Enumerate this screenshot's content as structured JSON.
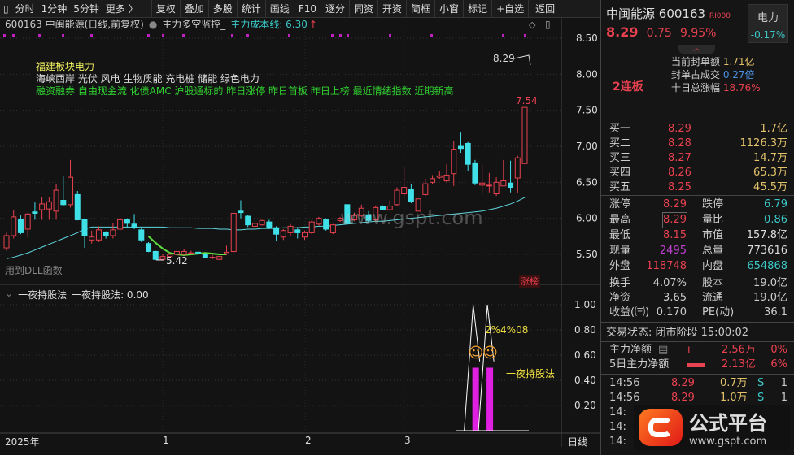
{
  "toolbar": {
    "left": [
      "分时",
      "1分钟",
      "5分钟",
      "更多 〉"
    ],
    "buttons": [
      "复权",
      "叠加",
      "多股",
      "统计",
      "画线",
      "F10",
      "逐分",
      "同资",
      "开资",
      "简框",
      "小窗",
      "标记",
      "+自选",
      "返回"
    ]
  },
  "subheader": {
    "title": "600163 中闽能源(日线,前复权)",
    "indicator": "主力多空监控_",
    "cost_label": "主力成本线: 6.30",
    "arrow": "↑"
  },
  "annot": {
    "sector": "福建板块电力",
    "concepts": "海峡西岸 光伏 风电 生物质能 充电桩 储能 绿色电力",
    "tags": "融资融券 自由现金流 化债AMC 沪股通标的 昨日涨停 昨日首板 昨日上榜 最近情绪指数 近期新高",
    "dll": "用到DLL函数",
    "low_label": "5.42",
    "high_label": "7.54",
    "last_label": "8.29",
    "badge": "涨榜"
  },
  "lower": {
    "title": "一夜持股法",
    "value_label": "一夜持股法: 0.00",
    "overlap_text": "2%4%08",
    "signal_text": "一夜持股法",
    "axis": [
      "1.00",
      "0.80",
      "0.60",
      "0.40",
      "0.20"
    ]
  },
  "xaxis": {
    "labels": [
      "2025年",
      "1",
      "2",
      "3"
    ],
    "period": "日线"
  },
  "chart_data": {
    "type": "candlestick",
    "yaxis_ticks": [
      8.5,
      8.0,
      7.5,
      7.0,
      6.5,
      6.0,
      5.5
    ],
    "up_color": "#e8414f",
    "down_color": "#40e0e8",
    "candles": [
      [
        5.59,
        5.8,
        5.55,
        5.76
      ],
      [
        5.76,
        6.12,
        5.72,
        6.02
      ],
      [
        5.99,
        6.04,
        5.78,
        5.8
      ],
      [
        5.85,
        6.08,
        5.74,
        6.06
      ],
      [
        6.09,
        6.22,
        5.98,
        6.07
      ],
      [
        6.12,
        6.3,
        5.98,
        6.2
      ],
      [
        6.13,
        6.3,
        5.98,
        6.23
      ],
      [
        6.1,
        6.47,
        5.98,
        6.39
      ],
      [
        6.25,
        6.59,
        6.17,
        6.19
      ],
      [
        6.19,
        6.81,
        6.15,
        6.57
      ],
      [
        6.33,
        6.38,
        5.97,
        5.98
      ],
      [
        5.98,
        6.0,
        5.59,
        5.76
      ],
      [
        5.7,
        5.83,
        5.65,
        5.74
      ],
      [
        5.7,
        5.89,
        5.67,
        5.84
      ],
      [
        5.8,
        5.82,
        5.72,
        5.76
      ],
      [
        5.76,
        5.93,
        5.72,
        5.84
      ],
      [
        5.85,
        6.0,
        5.83,
        5.98
      ],
      [
        5.98,
        6.0,
        5.87,
        5.93
      ],
      [
        5.92,
        6.06,
        5.85,
        5.87
      ],
      [
        5.84,
        5.87,
        5.67,
        5.7
      ],
      [
        5.65,
        5.67,
        5.53,
        5.54
      ],
      [
        5.54,
        5.55,
        5.42,
        5.43
      ],
      [
        5.43,
        5.5,
        5.42,
        5.47
      ],
      [
        5.47,
        5.52,
        5.45,
        5.5
      ],
      [
        5.5,
        5.57,
        5.49,
        5.54
      ],
      [
        5.5,
        5.57,
        5.49,
        5.54
      ],
      [
        5.52,
        5.55,
        5.5,
        5.52
      ],
      [
        5.53,
        5.55,
        5.5,
        5.52
      ],
      [
        5.5,
        5.52,
        5.45,
        5.46
      ],
      [
        5.46,
        5.5,
        5.43,
        5.46
      ],
      [
        5.43,
        5.48,
        5.42,
        5.47
      ],
      [
        5.51,
        5.62,
        5.49,
        5.53
      ],
      [
        5.54,
        6.07,
        5.53,
        6.07
      ],
      [
        6.1,
        6.25,
        6.0,
        6.08
      ],
      [
        6.03,
        6.05,
        5.88,
        5.91
      ],
      [
        5.89,
        5.95,
        5.86,
        5.93
      ],
      [
        5.91,
        5.98,
        5.9,
        5.97
      ],
      [
        5.95,
        5.98,
        5.85,
        5.87
      ],
      [
        5.87,
        5.89,
        5.68,
        5.78
      ],
      [
        5.74,
        5.85,
        5.7,
        5.83
      ],
      [
        5.8,
        5.92,
        5.76,
        5.89
      ],
      [
        5.84,
        5.88,
        5.72,
        5.8
      ],
      [
        5.74,
        5.83,
        5.7,
        5.8
      ],
      [
        5.8,
        5.97,
        5.78,
        5.95
      ],
      [
        5.92,
        6.02,
        5.9,
        6.0
      ],
      [
        5.98,
        6.0,
        5.83,
        5.85
      ],
      [
        5.8,
        5.92,
        5.78,
        5.91
      ],
      [
        5.97,
        6.02,
        5.95,
        6.0
      ],
      [
        6.19,
        6.19,
        5.92,
        5.93
      ],
      [
        5.98,
        6.08,
        5.96,
        6.04
      ],
      [
        6.04,
        6.19,
        6.02,
        6.14
      ],
      [
        6.05,
        6.1,
        5.95,
        5.97
      ],
      [
        5.98,
        6.18,
        5.96,
        6.15
      ],
      [
        6.16,
        6.18,
        6.11,
        6.12
      ],
      [
        6.12,
        6.25,
        6.1,
        6.17
      ],
      [
        6.19,
        6.43,
        6.17,
        6.39
      ],
      [
        6.34,
        6.71,
        6.3,
        6.43
      ],
      [
        6.4,
        6.47,
        6.21,
        6.23
      ],
      [
        6.1,
        6.27,
        6.1,
        6.27
      ],
      [
        6.33,
        6.55,
        6.31,
        6.48
      ],
      [
        6.5,
        6.6,
        6.48,
        6.55
      ],
      [
        6.57,
        6.65,
        6.55,
        6.59
      ],
      [
        6.52,
        6.75,
        6.5,
        6.6
      ],
      [
        6.62,
        7.07,
        6.45,
        6.96
      ],
      [
        7.0,
        7.19,
        6.91,
        6.97
      ],
      [
        7.04,
        7.06,
        6.66,
        6.75
      ],
      [
        6.77,
        6.81,
        6.46,
        6.49
      ],
      [
        6.46,
        6.74,
        6.34,
        6.49
      ],
      [
        6.46,
        6.63,
        6.36,
        6.46
      ],
      [
        6.34,
        6.57,
        6.31,
        6.5
      ],
      [
        6.45,
        6.81,
        6.45,
        6.52
      ],
      [
        6.49,
        6.8,
        6.36,
        6.43
      ],
      [
        6.56,
        6.87,
        6.35,
        6.84
      ],
      [
        6.76,
        7.54,
        6.76,
        7.54
      ]
    ],
    "ma": [
      5.44,
      5.46,
      5.49,
      5.52,
      5.56,
      5.6,
      5.64,
      5.68,
      5.72,
      5.76,
      5.8,
      5.85,
      5.88,
      5.88,
      5.88,
      5.88,
      5.88,
      5.88,
      5.88,
      5.88,
      5.88,
      5.88,
      5.88,
      5.87,
      5.87,
      5.87,
      5.87,
      5.86,
      5.86,
      5.86,
      5.85,
      5.85,
      5.84,
      5.84,
      5.85,
      5.85,
      5.86,
      5.86,
      5.86,
      5.87,
      5.87,
      5.87,
      5.88,
      5.88,
      5.89,
      5.89,
      5.9,
      5.91,
      5.92,
      5.93,
      5.94,
      5.95,
      5.96,
      5.96,
      5.97,
      5.98,
      5.99,
      6.0,
      6.01,
      6.02,
      6.03,
      6.04,
      6.05,
      6.06,
      6.07,
      6.08,
      6.09,
      6.1,
      6.12,
      6.14,
      6.17,
      6.2,
      6.24,
      6.29
    ],
    "green_line": {
      "start": 20,
      "values": [
        5.75,
        5.66,
        5.58,
        5.52,
        5.5,
        5.49,
        5.5,
        5.51,
        5.52,
        5.51,
        5.5,
        5.5
      ]
    },
    "indicator": {
      "range": [
        0,
        1.0
      ],
      "spikes": [
        {
          "index": 67,
          "peak": 1.0,
          "bar": 0.5
        },
        {
          "index": 69,
          "peak": 1.0,
          "bar": 0.5
        }
      ]
    }
  },
  "quote": {
    "name": "中闽能源",
    "code": "600163",
    "tag": "RⅠ000",
    "price": "8.29",
    "change": "0.75",
    "pct": "9.95%",
    "sector": "电力",
    "sector_pct": "-0.17%",
    "streak": "2连板",
    "seal": [
      {
        "label": "当前封单额",
        "value": "1.71亿"
      },
      {
        "label": "封单占成交",
        "value": "0.27倍"
      },
      {
        "label": "十日总涨幅",
        "value": "18.76%"
      }
    ],
    "bids": [
      {
        "label": "买一",
        "price": "8.29",
        "vol": "1.7亿"
      },
      {
        "label": "买二",
        "price": "8.28",
        "vol": "1126.3万"
      },
      {
        "label": "买三",
        "price": "8.27",
        "vol": "14.7万"
      },
      {
        "label": "买四",
        "price": "8.26",
        "vol": "65.3万"
      },
      {
        "label": "买五",
        "price": "8.25",
        "vol": "45.5万"
      }
    ],
    "stats": [
      [
        "涨停",
        "8.29",
        "跌停",
        "6.79"
      ],
      [
        "最高",
        "8.29",
        "量比",
        "0.86"
      ],
      [
        "最低",
        "8.15",
        "市值",
        "157.8亿"
      ],
      [
        "现量",
        "2495",
        "总量",
        "773616"
      ],
      [
        "外盘",
        "118748",
        "内盘",
        "654868"
      ]
    ],
    "stats2": [
      [
        "换手",
        "4.07%",
        "股本",
        "19.0亿"
      ],
      [
        "净资",
        "3.65",
        "流通",
        "19.0亿"
      ],
      [
        "收益(㈢)",
        "0.170",
        "PE(动)",
        "36.1"
      ]
    ],
    "status": "交易状态: 闭市阶段 15:00:02",
    "flow": [
      {
        "label": "主力净额",
        "value": "2.56万",
        "pct": "0%"
      },
      {
        "label": "5日主力净额",
        "value": "2.13亿",
        "pct": "6%"
      }
    ],
    "trades": [
      {
        "time": "14:56",
        "price": "8.29",
        "vol": "0.7万",
        "side": "S",
        "n": "1"
      },
      {
        "time": "14:56",
        "price": "8.29",
        "vol": "1.0万",
        "side": "S",
        "n": "1"
      },
      {
        "time": "14:"
      },
      {
        "time": "14:"
      },
      {
        "time": "14:"
      }
    ]
  },
  "logo": {
    "title": "公式平台",
    "url": "www.gspt.com"
  },
  "watermark": "www.gspt.com"
}
